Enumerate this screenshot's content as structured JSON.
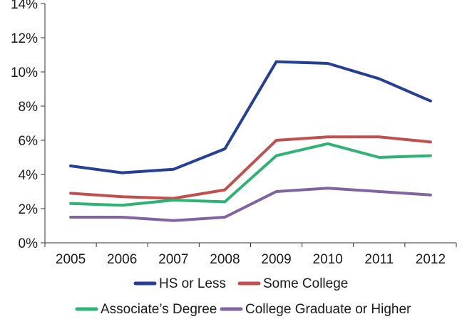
{
  "chart_data": {
    "type": "line",
    "title": "",
    "xlabel": "",
    "ylabel": "",
    "x": [
      "2005",
      "2006",
      "2007",
      "2008",
      "2009",
      "2010",
      "2011",
      "2012"
    ],
    "ylim": [
      0,
      14
    ],
    "y_ticks": [
      "0%",
      "2%",
      "4%",
      "6%",
      "8%",
      "10%",
      "12%",
      "14%"
    ],
    "grid": false,
    "legend_position": "bottom",
    "series": [
      {
        "name": "HS or Less",
        "color": "#243f94",
        "values": [
          4.5,
          4.1,
          4.3,
          5.5,
          10.6,
          10.5,
          9.6,
          8.3
        ]
      },
      {
        "name": "Some College",
        "color": "#c0504d",
        "values": [
          2.9,
          2.7,
          2.6,
          3.1,
          6.0,
          6.2,
          6.2,
          5.9
        ]
      },
      {
        "name": "Associate’s Degree",
        "color": "#2eb374",
        "values": [
          2.3,
          2.2,
          2.5,
          2.4,
          5.1,
          5.8,
          5.0,
          5.1
        ]
      },
      {
        "name": "College Graduate or Higher",
        "color": "#8064a2",
        "values": [
          1.5,
          1.5,
          1.3,
          1.5,
          3.0,
          3.2,
          3.0,
          2.8
        ]
      }
    ]
  }
}
